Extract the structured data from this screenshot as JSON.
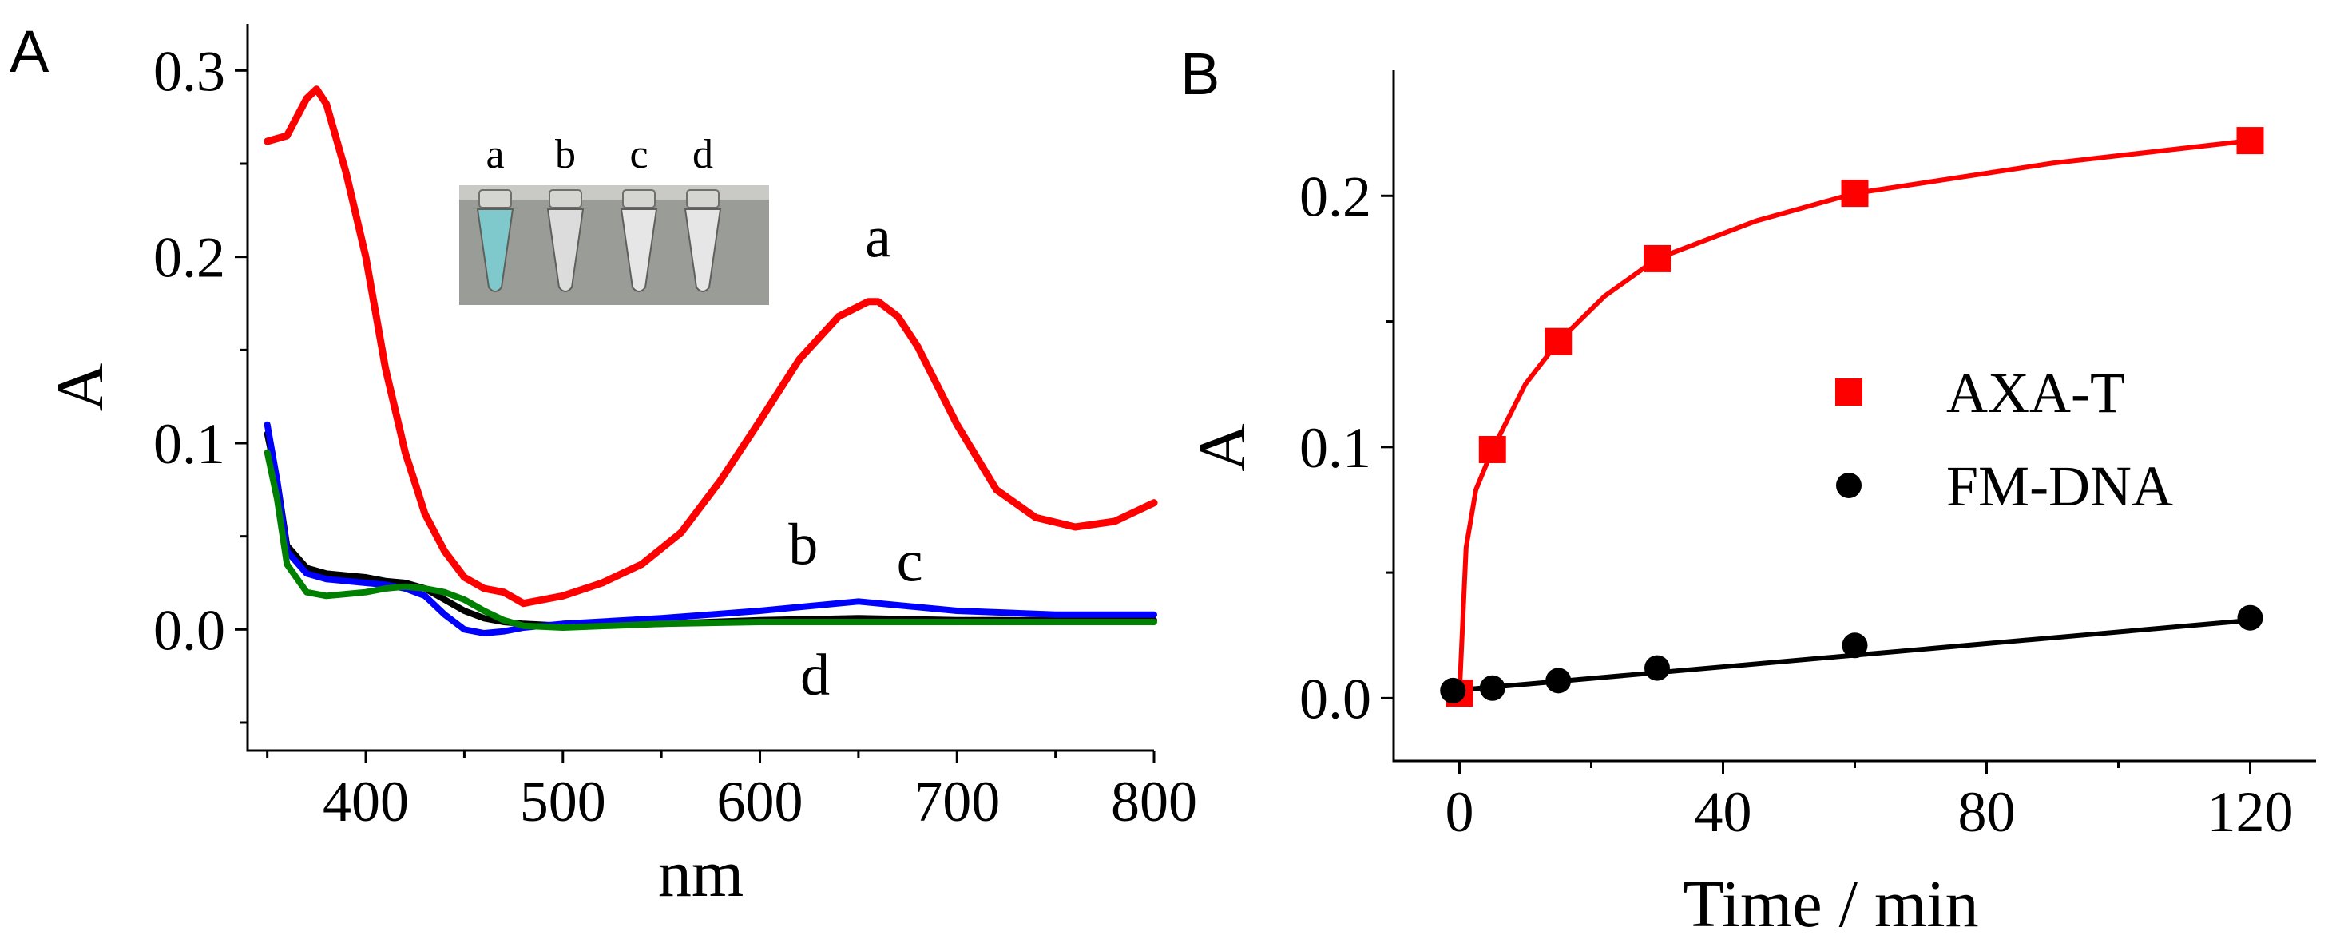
{
  "chart_data": [
    {
      "panel": "A",
      "type": "line",
      "xlabel": "nm",
      "ylabel": "A",
      "xlim": [
        340,
        800
      ],
      "ylim": [
        -0.065,
        0.325
      ],
      "x_ticks": [
        400,
        500,
        600,
        700,
        800
      ],
      "x_tick_labels": [
        "400",
        "500",
        "600",
        "700",
        "800"
      ],
      "y_ticks": [
        0.0,
        0.1,
        0.2,
        0.3
      ],
      "y_tick_labels": [
        "0.0",
        "0.1",
        "0.2",
        "0.3"
      ],
      "series": [
        {
          "name": "a",
          "color": "#ff0000",
          "x": [
            350,
            360,
            370,
            375,
            380,
            390,
            400,
            410,
            420,
            430,
            440,
            450,
            460,
            470,
            480,
            490,
            500,
            520,
            540,
            560,
            580,
            600,
            620,
            640,
            655,
            660,
            670,
            680,
            700,
            720,
            740,
            760,
            780,
            800
          ],
          "y": [
            0.262,
            0.265,
            0.285,
            0.29,
            0.282,
            0.245,
            0.2,
            0.14,
            0.095,
            0.062,
            0.042,
            0.028,
            0.022,
            0.02,
            0.014,
            0.016,
            0.018,
            0.025,
            0.035,
            0.052,
            0.08,
            0.112,
            0.145,
            0.168,
            0.176,
            0.176,
            0.168,
            0.152,
            0.11,
            0.075,
            0.06,
            0.055,
            0.058,
            0.068
          ]
        },
        {
          "name": "b",
          "color": "#000000",
          "x": [
            350,
            355,
            360,
            370,
            380,
            390,
            400,
            410,
            420,
            430,
            440,
            450,
            460,
            470,
            480,
            500,
            550,
            600,
            650,
            700,
            750,
            800
          ],
          "y": [
            0.105,
            0.08,
            0.045,
            0.033,
            0.03,
            0.029,
            0.028,
            0.026,
            0.025,
            0.022,
            0.016,
            0.01,
            0.006,
            0.004,
            0.003,
            0.002,
            0.003,
            0.005,
            0.006,
            0.005,
            0.005,
            0.005
          ]
        },
        {
          "name": "c",
          "color": "#0000ff",
          "x": [
            350,
            355,
            360,
            370,
            380,
            390,
            400,
            410,
            420,
            430,
            440,
            450,
            460,
            470,
            480,
            500,
            550,
            600,
            650,
            700,
            750,
            800
          ],
          "y": [
            0.11,
            0.08,
            0.042,
            0.03,
            0.027,
            0.026,
            0.025,
            0.024,
            0.022,
            0.018,
            0.008,
            0.0,
            -0.002,
            -0.001,
            0.001,
            0.003,
            0.006,
            0.01,
            0.015,
            0.01,
            0.008,
            0.008
          ]
        },
        {
          "name": "d",
          "color": "#008000",
          "x": [
            350,
            355,
            360,
            370,
            380,
            390,
            400,
            410,
            420,
            430,
            440,
            450,
            460,
            470,
            480,
            500,
            550,
            600,
            650,
            700,
            750,
            800
          ],
          "y": [
            0.095,
            0.07,
            0.035,
            0.02,
            0.018,
            0.019,
            0.02,
            0.022,
            0.023,
            0.022,
            0.02,
            0.016,
            0.01,
            0.005,
            0.002,
            0.001,
            0.003,
            0.004,
            0.004,
            0.004,
            0.004,
            0.004
          ]
        }
      ],
      "annotations": [
        {
          "text": "a",
          "x": 660,
          "y": 0.2
        },
        {
          "text": "b",
          "x": 622,
          "y": 0.035
        },
        {
          "text": "c",
          "x": 676,
          "y": 0.026
        },
        {
          "text": "d",
          "x": 628,
          "y": -0.035
        }
      ],
      "inset": {
        "tube_labels": [
          "a",
          "b",
          "c",
          "d"
        ],
        "tube_colors": [
          "#7fc9cc",
          "#dcdcdc",
          "#e6e6e6",
          "#e6e6e6"
        ]
      }
    },
    {
      "panel": "B",
      "type": "scatter",
      "xlabel": "Time / min",
      "ylabel": "A",
      "xlim": [
        -10,
        130
      ],
      "ylim": [
        -0.025,
        0.25
      ],
      "x_ticks": [
        0,
        40,
        80,
        120
      ],
      "x_tick_labels": [
        "0",
        "40",
        "80",
        "120"
      ],
      "y_ticks": [
        0.0,
        0.1,
        0.2
      ],
      "y_tick_labels": [
        "0.0",
        "0.1",
        "0.2"
      ],
      "legend_position": "right-middle",
      "series": [
        {
          "name": "AXA-T",
          "color": "#ff0000",
          "marker": "square",
          "x": [
            0,
            5,
            15,
            30,
            60,
            120
          ],
          "y": [
            0.002,
            0.099,
            0.142,
            0.175,
            0.201,
            0.222
          ]
        },
        {
          "name": "FM-DNA",
          "color": "#000000",
          "marker": "circle",
          "x": [
            -1,
            5,
            15,
            30,
            60,
            120
          ],
          "y": [
            0.003,
            0.004,
            0.007,
            0.012,
            0.021,
            0.032
          ]
        }
      ]
    }
  ],
  "panel_labels": [
    "A",
    "B"
  ]
}
